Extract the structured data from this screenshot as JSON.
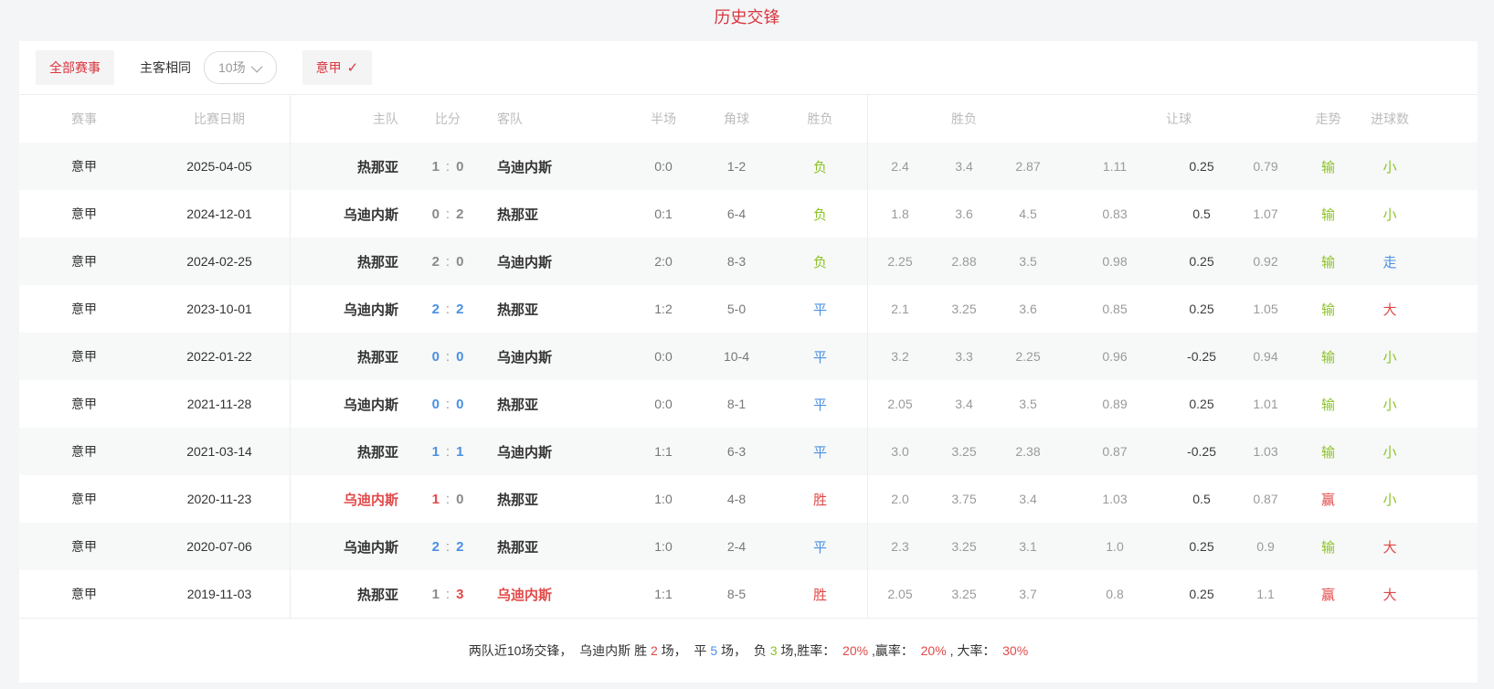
{
  "page": {
    "title": "历史交锋"
  },
  "colors": {
    "accent_red": "#d9363e",
    "mark_red": "#e24848",
    "mark_green": "#8bc325",
    "mark_blue": "#4a90e2",
    "odds_gray": "#999999",
    "text_dark": "#333333",
    "header_gray": "#bbbbbb",
    "row_stripe": "#f7f8f8"
  },
  "filters": {
    "all_matches": "全部赛事",
    "same_home_away": "主客相同",
    "count_select": "10场",
    "league": "意甲",
    "check_icon": "✓"
  },
  "table": {
    "headers": {
      "league": "赛事",
      "date": "比赛日期",
      "home": "主队",
      "score": "比分",
      "away": "客队",
      "half": "半场",
      "corners": "角球",
      "result": "胜负",
      "odds_group": "胜负",
      "handicap_group": "让球",
      "trend": "走势",
      "goals": "进球数"
    },
    "rows": [
      {
        "league": "意甲",
        "date": "2025-04-05",
        "home": {
          "name": "热那亚",
          "c": "dark"
        },
        "score": {
          "home": {
            "t": "1",
            "c": "gray"
          },
          "away": {
            "t": "0",
            "c": "gray"
          }
        },
        "away": {
          "name": "乌迪内斯",
          "c": "dark"
        },
        "half": "0:0",
        "corners": "1-2",
        "result": {
          "t": "负",
          "c": "green"
        },
        "odds": [
          "2.4",
          "3.4",
          "2.87"
        ],
        "handicap": [
          "1.11",
          "0.25",
          "0.79"
        ],
        "trend": {
          "t": "输",
          "c": "green"
        },
        "goals": {
          "t": "小",
          "c": "green"
        }
      },
      {
        "league": "意甲",
        "date": "2024-12-01",
        "home": {
          "name": "乌迪内斯",
          "c": "dark"
        },
        "score": {
          "home": {
            "t": "0",
            "c": "gray"
          },
          "away": {
            "t": "2",
            "c": "gray"
          }
        },
        "away": {
          "name": "热那亚",
          "c": "dark"
        },
        "half": "0:1",
        "corners": "6-4",
        "result": {
          "t": "负",
          "c": "green"
        },
        "odds": [
          "1.8",
          "3.6",
          "4.5"
        ],
        "handicap": [
          "0.83",
          "0.5",
          "1.07"
        ],
        "trend": {
          "t": "输",
          "c": "green"
        },
        "goals": {
          "t": "小",
          "c": "green"
        }
      },
      {
        "league": "意甲",
        "date": "2024-02-25",
        "home": {
          "name": "热那亚",
          "c": "dark"
        },
        "score": {
          "home": {
            "t": "2",
            "c": "gray"
          },
          "away": {
            "t": "0",
            "c": "gray"
          }
        },
        "away": {
          "name": "乌迪内斯",
          "c": "dark"
        },
        "half": "2:0",
        "corners": "8-3",
        "result": {
          "t": "负",
          "c": "green"
        },
        "odds": [
          "2.25",
          "2.88",
          "3.5"
        ],
        "handicap": [
          "0.98",
          "0.25",
          "0.92"
        ],
        "trend": {
          "t": "输",
          "c": "green"
        },
        "goals": {
          "t": "走",
          "c": "blue"
        }
      },
      {
        "league": "意甲",
        "date": "2023-10-01",
        "home": {
          "name": "乌迪内斯",
          "c": "dark"
        },
        "score": {
          "home": {
            "t": "2",
            "c": "blue"
          },
          "away": {
            "t": "2",
            "c": "blue"
          }
        },
        "away": {
          "name": "热那亚",
          "c": "dark"
        },
        "half": "1:2",
        "corners": "5-0",
        "result": {
          "t": "平",
          "c": "blue"
        },
        "odds": [
          "2.1",
          "3.25",
          "3.6"
        ],
        "handicap": [
          "0.85",
          "0.25",
          "1.05"
        ],
        "trend": {
          "t": "输",
          "c": "green"
        },
        "goals": {
          "t": "大",
          "c": "red"
        }
      },
      {
        "league": "意甲",
        "date": "2022-01-22",
        "home": {
          "name": "热那亚",
          "c": "dark"
        },
        "score": {
          "home": {
            "t": "0",
            "c": "blue"
          },
          "away": {
            "t": "0",
            "c": "blue"
          }
        },
        "away": {
          "name": "乌迪内斯",
          "c": "dark"
        },
        "half": "0:0",
        "corners": "10-4",
        "result": {
          "t": "平",
          "c": "blue"
        },
        "odds": [
          "3.2",
          "3.3",
          "2.25"
        ],
        "handicap": [
          "0.96",
          "-0.25",
          "0.94"
        ],
        "trend": {
          "t": "输",
          "c": "green"
        },
        "goals": {
          "t": "小",
          "c": "green"
        }
      },
      {
        "league": "意甲",
        "date": "2021-11-28",
        "home": {
          "name": "乌迪内斯",
          "c": "dark"
        },
        "score": {
          "home": {
            "t": "0",
            "c": "blue"
          },
          "away": {
            "t": "0",
            "c": "blue"
          }
        },
        "away": {
          "name": "热那亚",
          "c": "dark"
        },
        "half": "0:0",
        "corners": "8-1",
        "result": {
          "t": "平",
          "c": "blue"
        },
        "odds": [
          "2.05",
          "3.4",
          "3.5"
        ],
        "handicap": [
          "0.89",
          "0.25",
          "1.01"
        ],
        "trend": {
          "t": "输",
          "c": "green"
        },
        "goals": {
          "t": "小",
          "c": "green"
        }
      },
      {
        "league": "意甲",
        "date": "2021-03-14",
        "home": {
          "name": "热那亚",
          "c": "dark"
        },
        "score": {
          "home": {
            "t": "1",
            "c": "blue"
          },
          "away": {
            "t": "1",
            "c": "blue"
          }
        },
        "away": {
          "name": "乌迪内斯",
          "c": "dark"
        },
        "half": "1:1",
        "corners": "6-3",
        "result": {
          "t": "平",
          "c": "blue"
        },
        "odds": [
          "3.0",
          "3.25",
          "2.38"
        ],
        "handicap": [
          "0.87",
          "-0.25",
          "1.03"
        ],
        "trend": {
          "t": "输",
          "c": "green"
        },
        "goals": {
          "t": "小",
          "c": "green"
        }
      },
      {
        "league": "意甲",
        "date": "2020-11-23",
        "home": {
          "name": "乌迪内斯",
          "c": "red"
        },
        "score": {
          "home": {
            "t": "1",
            "c": "red"
          },
          "away": {
            "t": "0",
            "c": "gray"
          }
        },
        "away": {
          "name": "热那亚",
          "c": "dark"
        },
        "half": "1:0",
        "corners": "4-8",
        "result": {
          "t": "胜",
          "c": "red"
        },
        "odds": [
          "2.0",
          "3.75",
          "3.4"
        ],
        "handicap": [
          "1.03",
          "0.5",
          "0.87"
        ],
        "trend": {
          "t": "赢",
          "c": "red"
        },
        "goals": {
          "t": "小",
          "c": "green"
        }
      },
      {
        "league": "意甲",
        "date": "2020-07-06",
        "home": {
          "name": "乌迪内斯",
          "c": "dark"
        },
        "score": {
          "home": {
            "t": "2",
            "c": "blue"
          },
          "away": {
            "t": "2",
            "c": "blue"
          }
        },
        "away": {
          "name": "热那亚",
          "c": "dark"
        },
        "half": "1:0",
        "corners": "2-4",
        "result": {
          "t": "平",
          "c": "blue"
        },
        "odds": [
          "2.3",
          "3.25",
          "3.1"
        ],
        "handicap": [
          "1.0",
          "0.25",
          "0.9"
        ],
        "trend": {
          "t": "输",
          "c": "green"
        },
        "goals": {
          "t": "大",
          "c": "red"
        }
      },
      {
        "league": "意甲",
        "date": "2019-11-03",
        "home": {
          "name": "热那亚",
          "c": "dark"
        },
        "score": {
          "home": {
            "t": "1",
            "c": "gray"
          },
          "away": {
            "t": "3",
            "c": "red"
          }
        },
        "away": {
          "name": "乌迪内斯",
          "c": "red"
        },
        "half": "1:1",
        "corners": "8-5",
        "result": {
          "t": "胜",
          "c": "red"
        },
        "odds": [
          "2.05",
          "3.25",
          "3.7"
        ],
        "handicap": [
          "0.8",
          "0.25",
          "1.1"
        ],
        "trend": {
          "t": "赢",
          "c": "red"
        },
        "goals": {
          "t": "大",
          "c": "red"
        }
      }
    ]
  },
  "summary": {
    "segments": [
      {
        "t": "两队近10场交锋，  乌迪内斯 胜 ",
        "c": "dark"
      },
      {
        "t": "2",
        "c": "red"
      },
      {
        "t": " 场，  平 ",
        "c": "dark"
      },
      {
        "t": "5",
        "c": "blue"
      },
      {
        "t": " 场，  负 ",
        "c": "dark"
      },
      {
        "t": "3",
        "c": "green"
      },
      {
        "t": " 场,胜率：  ",
        "c": "dark"
      },
      {
        "t": "20%",
        "c": "red"
      },
      {
        "t": " ,赢率：  ",
        "c": "dark"
      },
      {
        "t": "20%",
        "c": "red"
      },
      {
        "t": " , 大率：  ",
        "c": "dark"
      },
      {
        "t": "30%",
        "c": "red"
      }
    ]
  }
}
